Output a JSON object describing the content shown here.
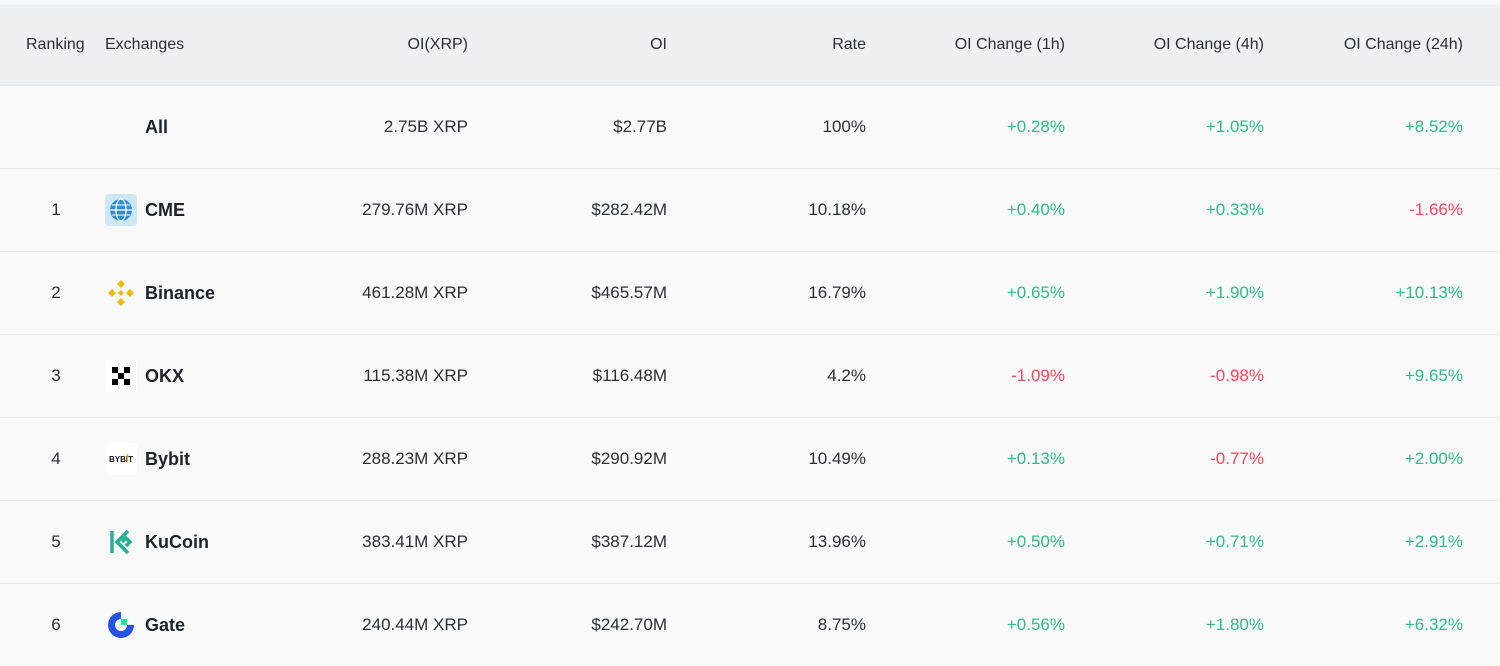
{
  "header": {
    "ranking": "Ranking",
    "exchanges": "Exchanges",
    "oi_xrp": "OI(XRP)",
    "oi": "OI",
    "rate": "Rate",
    "oi_change_1h": "OI Change (1h)",
    "oi_change_4h": "OI Change (4h)",
    "oi_change_24h": "OI Change (24h)"
  },
  "colors": {
    "positive": "#2ebd85",
    "negative": "#f6465d",
    "header_bg": "#eef1f4"
  },
  "rows": [
    {
      "rank": "",
      "name": "All",
      "icon": "",
      "oi_xrp": "2.75B XRP",
      "oi": "$2.77B",
      "rate": "100%",
      "ch1h": "+0.28%",
      "ch4h": "+1.05%",
      "ch24h": "+8.52%"
    },
    {
      "rank": "1",
      "name": "CME",
      "icon": "cme-globe-icon",
      "oi_xrp": "279.76M XRP",
      "oi": "$282.42M",
      "rate": "10.18%",
      "ch1h": "+0.40%",
      "ch4h": "+0.33%",
      "ch24h": "-1.66%"
    },
    {
      "rank": "2",
      "name": "Binance",
      "icon": "binance-diamond-icon",
      "oi_xrp": "461.28M XRP",
      "oi": "$465.57M",
      "rate": "16.79%",
      "ch1h": "+0.65%",
      "ch4h": "+1.90%",
      "ch24h": "+10.13%"
    },
    {
      "rank": "3",
      "name": "OKX",
      "icon": "okx-checker-icon",
      "oi_xrp": "115.38M XRP",
      "oi": "$116.48M",
      "rate": "4.2%",
      "ch1h": "-1.09%",
      "ch4h": "-0.98%",
      "ch24h": "+9.65%"
    },
    {
      "rank": "4",
      "name": "Bybit",
      "icon": "bybit-logo-icon",
      "logo_text": "BYBIT",
      "oi_xrp": "288.23M XRP",
      "oi": "$290.92M",
      "rate": "10.49%",
      "ch1h": "+0.13%",
      "ch4h": "-0.77%",
      "ch24h": "+2.00%"
    },
    {
      "rank": "5",
      "name": "KuCoin",
      "icon": "kucoin-logo-icon",
      "oi_xrp": "383.41M XRP",
      "oi": "$387.12M",
      "rate": "13.96%",
      "ch1h": "+0.50%",
      "ch4h": "+0.71%",
      "ch24h": "+2.91%"
    },
    {
      "rank": "6",
      "name": "Gate",
      "icon": "gate-logo-icon",
      "oi_xrp": "240.44M XRP",
      "oi": "$242.70M",
      "rate": "8.75%",
      "ch1h": "+0.56%",
      "ch4h": "+1.80%",
      "ch24h": "+6.32%"
    }
  ]
}
